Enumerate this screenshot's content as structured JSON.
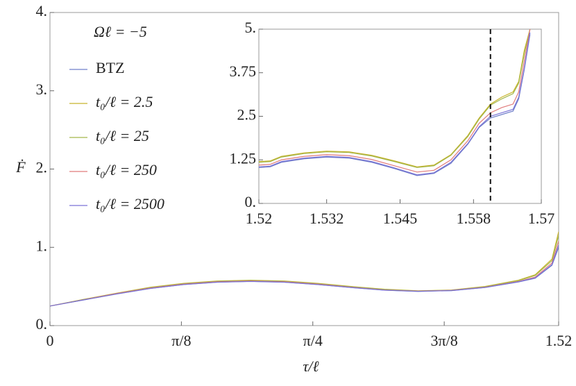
{
  "chart_data": [
    {
      "type": "line",
      "annotation": "Ωℓ = −5",
      "x_label": "τ/ℓ",
      "y_label": "Ḟ",
      "xlim": [
        0,
        1.52
      ],
      "xticks": [
        0,
        {
          "value": 0.3927,
          "label": "π/8"
        },
        {
          "value": 0.7854,
          "label": "π/4"
        },
        {
          "value": 1.1781,
          "label": "3π/8"
        },
        1.52
      ],
      "ylim": [
        0,
        4
      ],
      "yticks": [
        {
          "value": 0,
          "label": "0."
        },
        {
          "value": 1,
          "label": "1."
        },
        {
          "value": 2,
          "label": "2."
        },
        {
          "value": 3,
          "label": "3."
        },
        {
          "value": 4,
          "label": "4."
        }
      ],
      "grid": false,
      "legend": "upper left",
      "x": [
        0,
        0.1,
        0.2,
        0.3,
        0.4,
        0.5,
        0.6,
        0.7,
        0.8,
        0.9,
        1.0,
        1.1,
        1.2,
        1.3,
        1.4,
        1.45,
        1.5,
        1.52
      ],
      "series": [
        {
          "name": "BTZ",
          "color": "#6f7fc9",
          "values": [
            0.25,
            0.327,
            0.404,
            0.474,
            0.524,
            0.554,
            0.564,
            0.554,
            0.524,
            0.486,
            0.452,
            0.437,
            0.447,
            0.486,
            0.557,
            0.605,
            0.77,
            1.0
          ]
        },
        {
          "name": "t₀/ℓ = 2.5",
          "color": "#c8b42a",
          "values": [
            0.25,
            0.335,
            0.415,
            0.49,
            0.54,
            0.57,
            0.58,
            0.57,
            0.54,
            0.5,
            0.465,
            0.445,
            0.455,
            0.5,
            0.58,
            0.65,
            0.85,
            1.2
          ]
        },
        {
          "name": "t₀/ℓ = 25",
          "color": "#a3b64a",
          "values": [
            0.25,
            0.333,
            0.413,
            0.487,
            0.537,
            0.567,
            0.577,
            0.567,
            0.537,
            0.497,
            0.462,
            0.443,
            0.453,
            0.497,
            0.575,
            0.64,
            0.83,
            1.15
          ]
        },
        {
          "name": "t₀/ℓ = 250",
          "color": "#e07a7a",
          "values": [
            0.25,
            0.33,
            0.41,
            0.48,
            0.53,
            0.56,
            0.57,
            0.56,
            0.53,
            0.49,
            0.455,
            0.44,
            0.45,
            0.49,
            0.565,
            0.62,
            0.8,
            1.08
          ]
        },
        {
          "name": "t₀/ℓ = 2500",
          "color": "#7a72d6",
          "values": [
            0.25,
            0.328,
            0.405,
            0.475,
            0.525,
            0.555,
            0.565,
            0.555,
            0.525,
            0.487,
            0.453,
            0.438,
            0.448,
            0.487,
            0.56,
            0.61,
            0.78,
            1.03
          ]
        }
      ]
    },
    {
      "type": "line",
      "xlim": [
        1.52,
        1.57
      ],
      "xticks": [
        1.52,
        1.532,
        1.545,
        1.558,
        1.57
      ],
      "ylim": [
        0,
        5
      ],
      "yticks": [
        {
          "value": 0,
          "label": "0."
        },
        1.25,
        2.5,
        3.75,
        {
          "value": 5,
          "label": "5."
        }
      ],
      "vline": 1.561,
      "x": [
        1.52,
        1.522,
        1.524,
        1.528,
        1.532,
        1.536,
        1.54,
        1.544,
        1.548,
        1.551,
        1.554,
        1.557,
        1.559,
        1.561,
        1.563,
        1.565,
        1.566,
        1.567,
        1.568
      ],
      "series": [
        {
          "color": "#6f7fc9",
          "values": [
            1.03,
            1.05,
            1.18,
            1.28,
            1.33,
            1.3,
            1.18,
            1.0,
            0.8,
            0.86,
            1.15,
            1.7,
            2.18,
            2.45,
            2.55,
            2.65,
            3.0,
            3.85,
            4.85
          ]
        },
        {
          "color": "#c8b42a",
          "values": [
            1.2,
            1.22,
            1.35,
            1.45,
            1.5,
            1.48,
            1.38,
            1.22,
            1.05,
            1.1,
            1.4,
            1.95,
            2.45,
            2.85,
            3.05,
            3.2,
            3.5,
            4.4,
            5
          ]
        },
        {
          "color": "#a3b64a",
          "values": [
            1.18,
            1.2,
            1.33,
            1.43,
            1.48,
            1.46,
            1.36,
            1.2,
            1.03,
            1.08,
            1.38,
            1.92,
            2.42,
            2.82,
            3.0,
            3.15,
            3.45,
            4.3,
            5
          ]
        },
        {
          "color": "#e07a7a",
          "values": [
            1.1,
            1.12,
            1.25,
            1.35,
            1.4,
            1.37,
            1.26,
            1.08,
            0.9,
            0.95,
            1.25,
            1.8,
            2.3,
            2.6,
            2.75,
            2.85,
            3.2,
            4.1,
            5
          ]
        },
        {
          "color": "#7a72d6",
          "values": [
            1.05,
            1.07,
            1.2,
            1.3,
            1.35,
            1.32,
            1.2,
            1.02,
            0.82,
            0.88,
            1.18,
            1.72,
            2.2,
            2.5,
            2.6,
            2.7,
            3.05,
            3.9,
            4.9
          ]
        }
      ]
    }
  ]
}
